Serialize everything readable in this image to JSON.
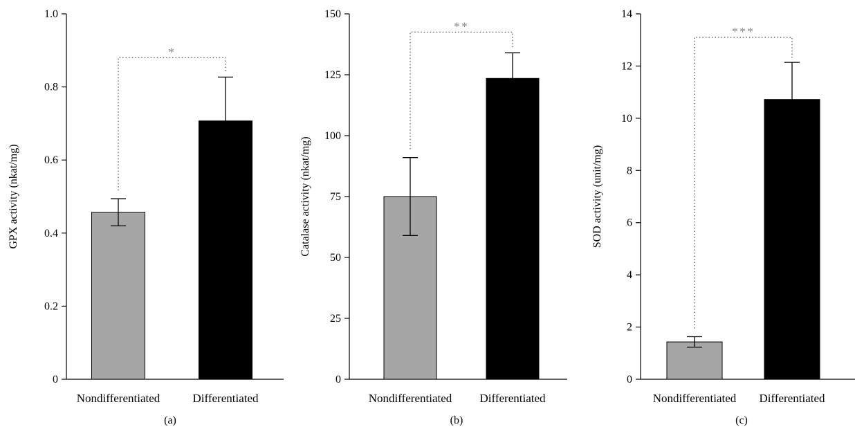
{
  "figure": {
    "background": "#ffffff"
  },
  "colors": {
    "nondifferentiated": "#a6a6a6",
    "differentiated": "#000000",
    "bracket": "#555555",
    "significance": "#8c8c8c"
  },
  "chart_data": [
    {
      "type": "bar",
      "panel": "(a)",
      "ylabel": "GPX activity (nkat/mg)",
      "categories": [
        "Nondifferentiated",
        "Differentiated"
      ],
      "values": [
        0.457,
        0.707
      ],
      "errors": [
        0.037,
        0.12
      ],
      "ylim": [
        0,
        1.0
      ],
      "yticks": [
        0,
        0.2,
        0.4,
        0.6,
        0.8,
        1.0
      ],
      "ytick_labels": [
        "0",
        "0.2",
        "0.4",
        "0.6",
        "0.8",
        "1.0"
      ],
      "significance": {
        "label": "*",
        "level": 0.88
      },
      "grid": false
    },
    {
      "type": "bar",
      "panel": "(b)",
      "ylabel": "Catalase activity (nkat/mg)",
      "categories": [
        "Nondifferentiated",
        "Differentiated"
      ],
      "values": [
        75,
        123.5
      ],
      "errors": [
        16,
        10.5
      ],
      "ylim": [
        0,
        150
      ],
      "yticks": [
        0,
        25,
        50,
        75,
        100,
        125,
        150
      ],
      "ytick_labels": [
        "0",
        "25",
        "50",
        "75",
        "100",
        "125",
        "150"
      ],
      "significance": {
        "label": "**",
        "level": 142.5
      },
      "grid": false
    },
    {
      "type": "bar",
      "panel": "(c)",
      "ylabel": "SOD activity (unit/mg)",
      "categories": [
        "Nondifferentiated",
        "Differentiated"
      ],
      "values": [
        1.43,
        10.72
      ],
      "errors": [
        0.2,
        1.42
      ],
      "ylim": [
        0,
        14
      ],
      "yticks": [
        0,
        2,
        4,
        6,
        8,
        10,
        12,
        14
      ],
      "ytick_labels": [
        "0",
        "2",
        "4",
        "6",
        "8",
        "10",
        "12",
        "14"
      ],
      "significance": {
        "label": "***",
        "level": 13.1
      },
      "grid": false
    }
  ]
}
